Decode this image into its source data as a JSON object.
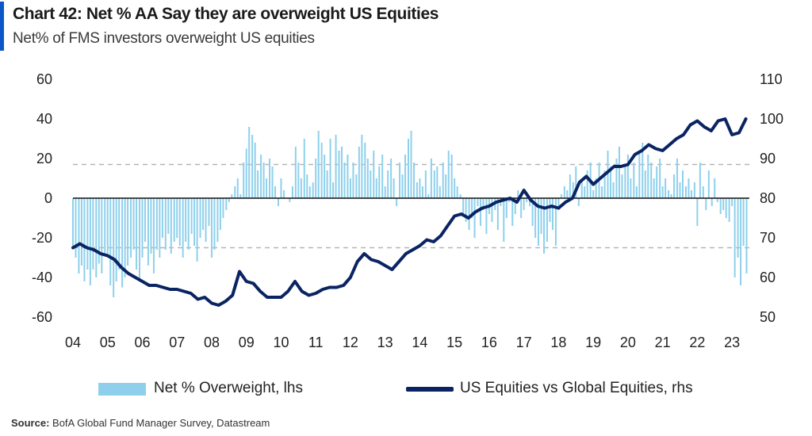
{
  "header": {
    "title": "Chart 42: Net % AA Say they are overweight US Equities",
    "subtitle": "Net% of FMS investors overweight US equities"
  },
  "legend": {
    "bars_label": "Net % Overweight, lhs",
    "line_label": "US Equities vs Global Equities, rhs"
  },
  "source": {
    "prefix": "Source:",
    "text": "BofA Global Fund Manager Survey, Datastream"
  },
  "colors": {
    "bars": "#8ed0ec",
    "line": "#0a2463",
    "zero_line": "#111111",
    "dashed_lines": "#b5b5b5"
  },
  "chart_data": {
    "type": "bar+line",
    "title": "Chart 42: Net % AA Say they are overweight US Equities",
    "subtitle": "Net% of FMS investors overweight US equities",
    "x_tick_labels": [
      "04",
      "05",
      "06",
      "07",
      "08",
      "09",
      "10",
      "11",
      "12",
      "13",
      "14",
      "15",
      "16",
      "17",
      "18",
      "19",
      "20",
      "21",
      "22",
      "23"
    ],
    "x_range": [
      2004.0,
      2023.5
    ],
    "y_left": {
      "range": [
        -60,
        60
      ],
      "ticks": [
        60,
        40,
        20,
        0,
        -20,
        -40,
        -60
      ]
    },
    "y_right": {
      "range": [
        50,
        110
      ],
      "ticks": [
        110,
        100,
        90,
        80,
        70,
        60,
        50
      ]
    },
    "reference_lines_left": [
      17,
      -25
    ],
    "series": [
      {
        "name": "Net % Overweight, lhs",
        "type": "bar",
        "axis": "left",
        "x": [
          2004.0,
          2004.08,
          2004.17,
          2004.25,
          2004.33,
          2004.42,
          2004.5,
          2004.58,
          2004.67,
          2004.75,
          2004.83,
          2004.92,
          2005.0,
          2005.08,
          2005.17,
          2005.25,
          2005.33,
          2005.42,
          2005.5,
          2005.58,
          2005.67,
          2005.75,
          2005.83,
          2005.92,
          2006.0,
          2006.08,
          2006.17,
          2006.25,
          2006.33,
          2006.42,
          2006.5,
          2006.58,
          2006.67,
          2006.75,
          2006.83,
          2006.92,
          2007.0,
          2007.08,
          2007.17,
          2007.25,
          2007.33,
          2007.42,
          2007.5,
          2007.58,
          2007.67,
          2007.75,
          2007.83,
          2007.92,
          2008.0,
          2008.08,
          2008.17,
          2008.25,
          2008.33,
          2008.42,
          2008.5,
          2008.58,
          2008.67,
          2008.75,
          2008.83,
          2008.92,
          2009.0,
          2009.08,
          2009.17,
          2009.25,
          2009.33,
          2009.42,
          2009.5,
          2009.58,
          2009.67,
          2009.75,
          2009.83,
          2009.92,
          2010.0,
          2010.08,
          2010.17,
          2010.25,
          2010.33,
          2010.42,
          2010.5,
          2010.58,
          2010.67,
          2010.75,
          2010.83,
          2010.92,
          2011.0,
          2011.08,
          2011.17,
          2011.25,
          2011.33,
          2011.42,
          2011.5,
          2011.58,
          2011.67,
          2011.75,
          2011.83,
          2011.92,
          2012.0,
          2012.08,
          2012.17,
          2012.25,
          2012.33,
          2012.42,
          2012.5,
          2012.58,
          2012.67,
          2012.75,
          2012.83,
          2012.92,
          2013.0,
          2013.08,
          2013.17,
          2013.25,
          2013.33,
          2013.42,
          2013.5,
          2013.58,
          2013.67,
          2013.75,
          2013.83,
          2013.92,
          2014.0,
          2014.08,
          2014.17,
          2014.25,
          2014.33,
          2014.42,
          2014.5,
          2014.58,
          2014.67,
          2014.75,
          2014.83,
          2014.92,
          2015.0,
          2015.08,
          2015.17,
          2015.25,
          2015.33,
          2015.42,
          2015.5,
          2015.58,
          2015.67,
          2015.75,
          2015.83,
          2015.92,
          2016.0,
          2016.08,
          2016.17,
          2016.25,
          2016.33,
          2016.42,
          2016.5,
          2016.58,
          2016.67,
          2016.75,
          2016.83,
          2016.92,
          2017.0,
          2017.08,
          2017.17,
          2017.25,
          2017.33,
          2017.42,
          2017.5,
          2017.58,
          2017.67,
          2017.75,
          2017.83,
          2017.92,
          2018.0,
          2018.08,
          2018.17,
          2018.25,
          2018.33,
          2018.42,
          2018.5,
          2018.58,
          2018.67,
          2018.75,
          2018.83,
          2018.92,
          2019.0,
          2019.08,
          2019.17,
          2019.25,
          2019.33,
          2019.42,
          2019.5,
          2019.58,
          2019.67,
          2019.75,
          2019.83,
          2019.92,
          2020.0,
          2020.08,
          2020.17,
          2020.25,
          2020.33,
          2020.42,
          2020.5,
          2020.58,
          2020.67,
          2020.75,
          2020.83,
          2020.92,
          2021.0,
          2021.08,
          2021.17,
          2021.25,
          2021.33,
          2021.42,
          2021.5,
          2021.58,
          2021.67,
          2021.75,
          2021.83,
          2021.92,
          2022.0,
          2022.08,
          2022.17,
          2022.25,
          2022.33,
          2022.42,
          2022.5,
          2022.58,
          2022.67,
          2022.75,
          2022.83,
          2022.92,
          2023.0,
          2023.08,
          2023.17,
          2023.25,
          2023.33,
          2023.42
        ],
        "values": [
          -25,
          -30,
          -38,
          -34,
          -42,
          -36,
          -44,
          -36,
          -40,
          -33,
          -38,
          -28,
          -30,
          -44,
          -50,
          -42,
          -36,
          -45,
          -40,
          -34,
          -30,
          -26,
          -36,
          -42,
          -30,
          -22,
          -34,
          -28,
          -38,
          -26,
          -30,
          -20,
          -26,
          -18,
          -28,
          -22,
          -20,
          -24,
          -30,
          -22,
          -26,
          -18,
          -24,
          -32,
          -20,
          -16,
          -22,
          -14,
          -30,
          -26,
          -22,
          -16,
          -10,
          -6,
          -2,
          2,
          6,
          10,
          2,
          18,
          25,
          36,
          32,
          28,
          14,
          22,
          18,
          10,
          20,
          16,
          6,
          -4,
          10,
          4,
          0,
          -2,
          6,
          26,
          18,
          10,
          30,
          12,
          6,
          8,
          20,
          34,
          28,
          22,
          14,
          30,
          8,
          32,
          24,
          26,
          18,
          22,
          10,
          18,
          12,
          26,
          32,
          28,
          20,
          14,
          24,
          10,
          16,
          22,
          6,
          14,
          20,
          10,
          -4,
          18,
          12,
          22,
          30,
          34,
          18,
          8,
          10,
          6,
          14,
          2,
          20,
          14,
          16,
          6,
          18,
          12,
          24,
          22,
          10,
          6,
          2,
          -8,
          -12,
          -16,
          -10,
          -20,
          -4,
          -14,
          -6,
          -18,
          -8,
          -12,
          -6,
          -16,
          -4,
          -22,
          -10,
          -2,
          -14,
          -8,
          4,
          -10,
          -6,
          -2,
          -4,
          -14,
          -20,
          -24,
          -18,
          -28,
          -22,
          -12,
          -16,
          -24,
          -6,
          2,
          6,
          4,
          12,
          8,
          16,
          -4,
          10,
          6,
          14,
          18,
          4,
          10,
          18,
          6,
          14,
          24,
          16,
          8,
          20,
          26,
          12,
          16,
          22,
          10,
          18,
          6,
          24,
          28,
          14,
          22,
          18,
          10,
          16,
          20,
          6,
          10,
          4,
          2,
          12,
          20,
          8,
          14,
          6,
          10,
          4,
          8,
          -14,
          18,
          6,
          -6,
          14,
          -4,
          10,
          -2,
          -8,
          -6,
          -10,
          -12,
          -4,
          -40,
          -30,
          -44,
          -24,
          -38
        ]
      },
      {
        "name": "US Equities vs Global Equities, rhs",
        "type": "line",
        "axis": "right",
        "x": [
          2004.0,
          2004.2,
          2004.4,
          2004.6,
          2004.8,
          2005.0,
          2005.2,
          2005.4,
          2005.6,
          2005.8,
          2006.0,
          2006.2,
          2006.4,
          2006.6,
          2006.8,
          2007.0,
          2007.2,
          2007.4,
          2007.6,
          2007.8,
          2008.0,
          2008.2,
          2008.4,
          2008.6,
          2008.8,
          2009.0,
          2009.2,
          2009.4,
          2009.6,
          2009.8,
          2010.0,
          2010.2,
          2010.4,
          2010.6,
          2010.8,
          2011.0,
          2011.2,
          2011.4,
          2011.6,
          2011.8,
          2012.0,
          2012.2,
          2012.4,
          2012.6,
          2012.8,
          2013.0,
          2013.2,
          2013.4,
          2013.6,
          2013.8,
          2014.0,
          2014.2,
          2014.4,
          2014.6,
          2014.8,
          2015.0,
          2015.2,
          2015.4,
          2015.6,
          2015.8,
          2016.0,
          2016.2,
          2016.4,
          2016.6,
          2016.8,
          2017.0,
          2017.2,
          2017.4,
          2017.6,
          2017.8,
          2018.0,
          2018.2,
          2018.4,
          2018.6,
          2018.8,
          2019.0,
          2019.2,
          2019.4,
          2019.6,
          2019.8,
          2020.0,
          2020.2,
          2020.4,
          2020.6,
          2020.8,
          2021.0,
          2021.2,
          2021.4,
          2021.6,
          2021.8,
          2022.0,
          2022.2,
          2022.4,
          2022.6,
          2022.8,
          2023.0,
          2023.2,
          2023.4
        ],
        "values": [
          67.5,
          68.5,
          67.5,
          67,
          66,
          65.5,
          64.5,
          62.5,
          61,
          60,
          59,
          58,
          58,
          57.5,
          57,
          57,
          56.5,
          56,
          54.5,
          55,
          53.5,
          53,
          54,
          55.5,
          61.5,
          59,
          58.5,
          56.5,
          55,
          55,
          55,
          56.5,
          59,
          56.5,
          55.5,
          56,
          57,
          57.5,
          57.5,
          58,
          60,
          64,
          66,
          64.5,
          64,
          63,
          62,
          64,
          66,
          67,
          68,
          69.5,
          69,
          70.5,
          73,
          75.5,
          76,
          75,
          76.5,
          77.5,
          78,
          79,
          79.5,
          80,
          79,
          82,
          79.5,
          78,
          77.5,
          78,
          77.5,
          79,
          80,
          84,
          85.5,
          83.5,
          85,
          86.5,
          88,
          88,
          88.5,
          91,
          92,
          93.5,
          92.5,
          92,
          93.5,
          95,
          96,
          98.5,
          99.5,
          98,
          97,
          99.5,
          100,
          96,
          96.5,
          100
        ]
      }
    ]
  }
}
